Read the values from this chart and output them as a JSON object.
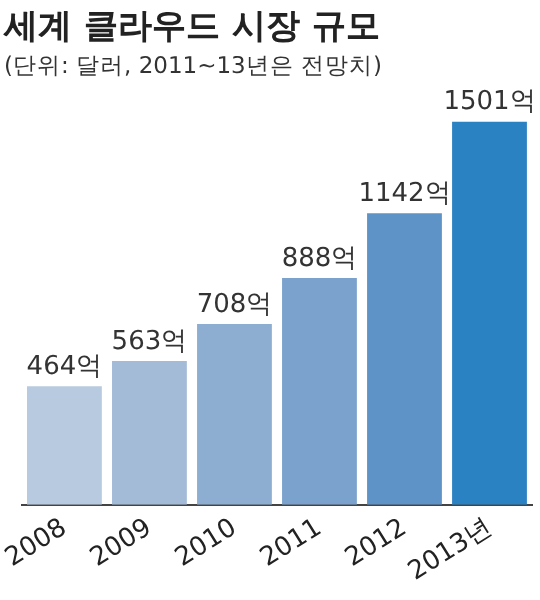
{
  "chart_data": {
    "type": "bar",
    "title": "세계 클라우드 시장 규모",
    "subtitle": "(단위: 달러, 2011~13년은 전망치)",
    "categories": [
      "2008",
      "2009",
      "2010",
      "2011",
      "2012",
      "2013년"
    ],
    "values": [
      464,
      563,
      708,
      888,
      1142,
      1501
    ],
    "value_labels": [
      "464억",
      "563억",
      "708억",
      "888억",
      "1142억",
      "1501억"
    ],
    "colors": [
      "#b8cadf",
      "#a3bbd7",
      "#8eaed1",
      "#7aa2cc",
      "#5e93c7",
      "#2b82c3"
    ],
    "grid": false,
    "legend": false
  }
}
